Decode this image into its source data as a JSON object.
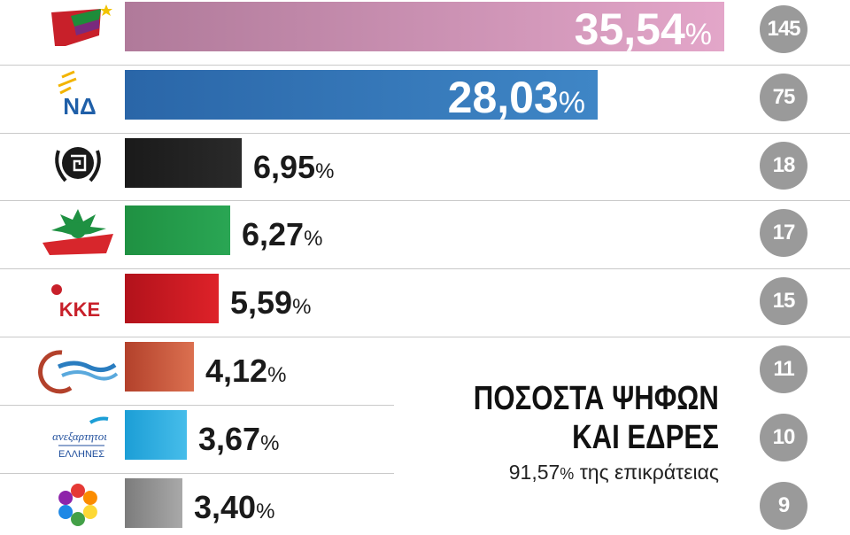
{
  "chart_data": {
    "type": "bar",
    "orientation": "horizontal",
    "title_lines": [
      "ΠΟΣΟΣΤΑ ΨΗΦΩΝ",
      "ΚΑΙ ΕΔΡΕΣ"
    ],
    "subtitle_value": "91,57",
    "subtitle_pct": "%",
    "subtitle_text": " της επικράτειας",
    "percent_symbol": "%",
    "legend": "none",
    "grid": false,
    "xlim": [
      0,
      35.54
    ],
    "parties": [
      {
        "logo": "syriza-logo",
        "value": 35.54,
        "label": "35,54",
        "seats": "145",
        "color_from": "#b07a9a",
        "color_to": "#e3a6c9"
      },
      {
        "logo": "nd-logo",
        "value": 28.03,
        "label": "28,03",
        "seats": "75",
        "color_from": "#2a66a8",
        "color_to": "#3f86c6",
        "logo_text": "ΝΔ"
      },
      {
        "logo": "golden-dawn-logo",
        "value": 6.95,
        "label": "6,95",
        "seats": "18",
        "color_from": "#1a1a1a",
        "color_to": "#2a2a2a"
      },
      {
        "logo": "pasok-logo",
        "value": 6.27,
        "label": "6,27",
        "seats": "17",
        "color_from": "#1f9142",
        "color_to": "#2aa654"
      },
      {
        "logo": "kke-logo",
        "value": 5.59,
        "label": "5,59",
        "seats": "15",
        "color_from": "#b2121b",
        "color_to": "#de2229",
        "logo_text": "ΚΚΕ"
      },
      {
        "logo": "potami-logo",
        "value": 4.12,
        "label": "4,12",
        "seats": "11",
        "color_from": "#b3412b",
        "color_to": "#db7050"
      },
      {
        "logo": "anel-logo",
        "value": 3.67,
        "label": "3,67",
        "seats": "10",
        "color_from": "#1c9ed6",
        "color_to": "#46bdea",
        "logo_text": [
          "ανεξαρτητοι",
          "ΕΛΛΗΝΕΣ"
        ]
      },
      {
        "logo": "enosi-kentroon-logo",
        "value": 3.4,
        "label": "3,40",
        "seats": "9",
        "color_from": "#7c7c7c",
        "color_to": "#a9a9a9"
      }
    ]
  }
}
